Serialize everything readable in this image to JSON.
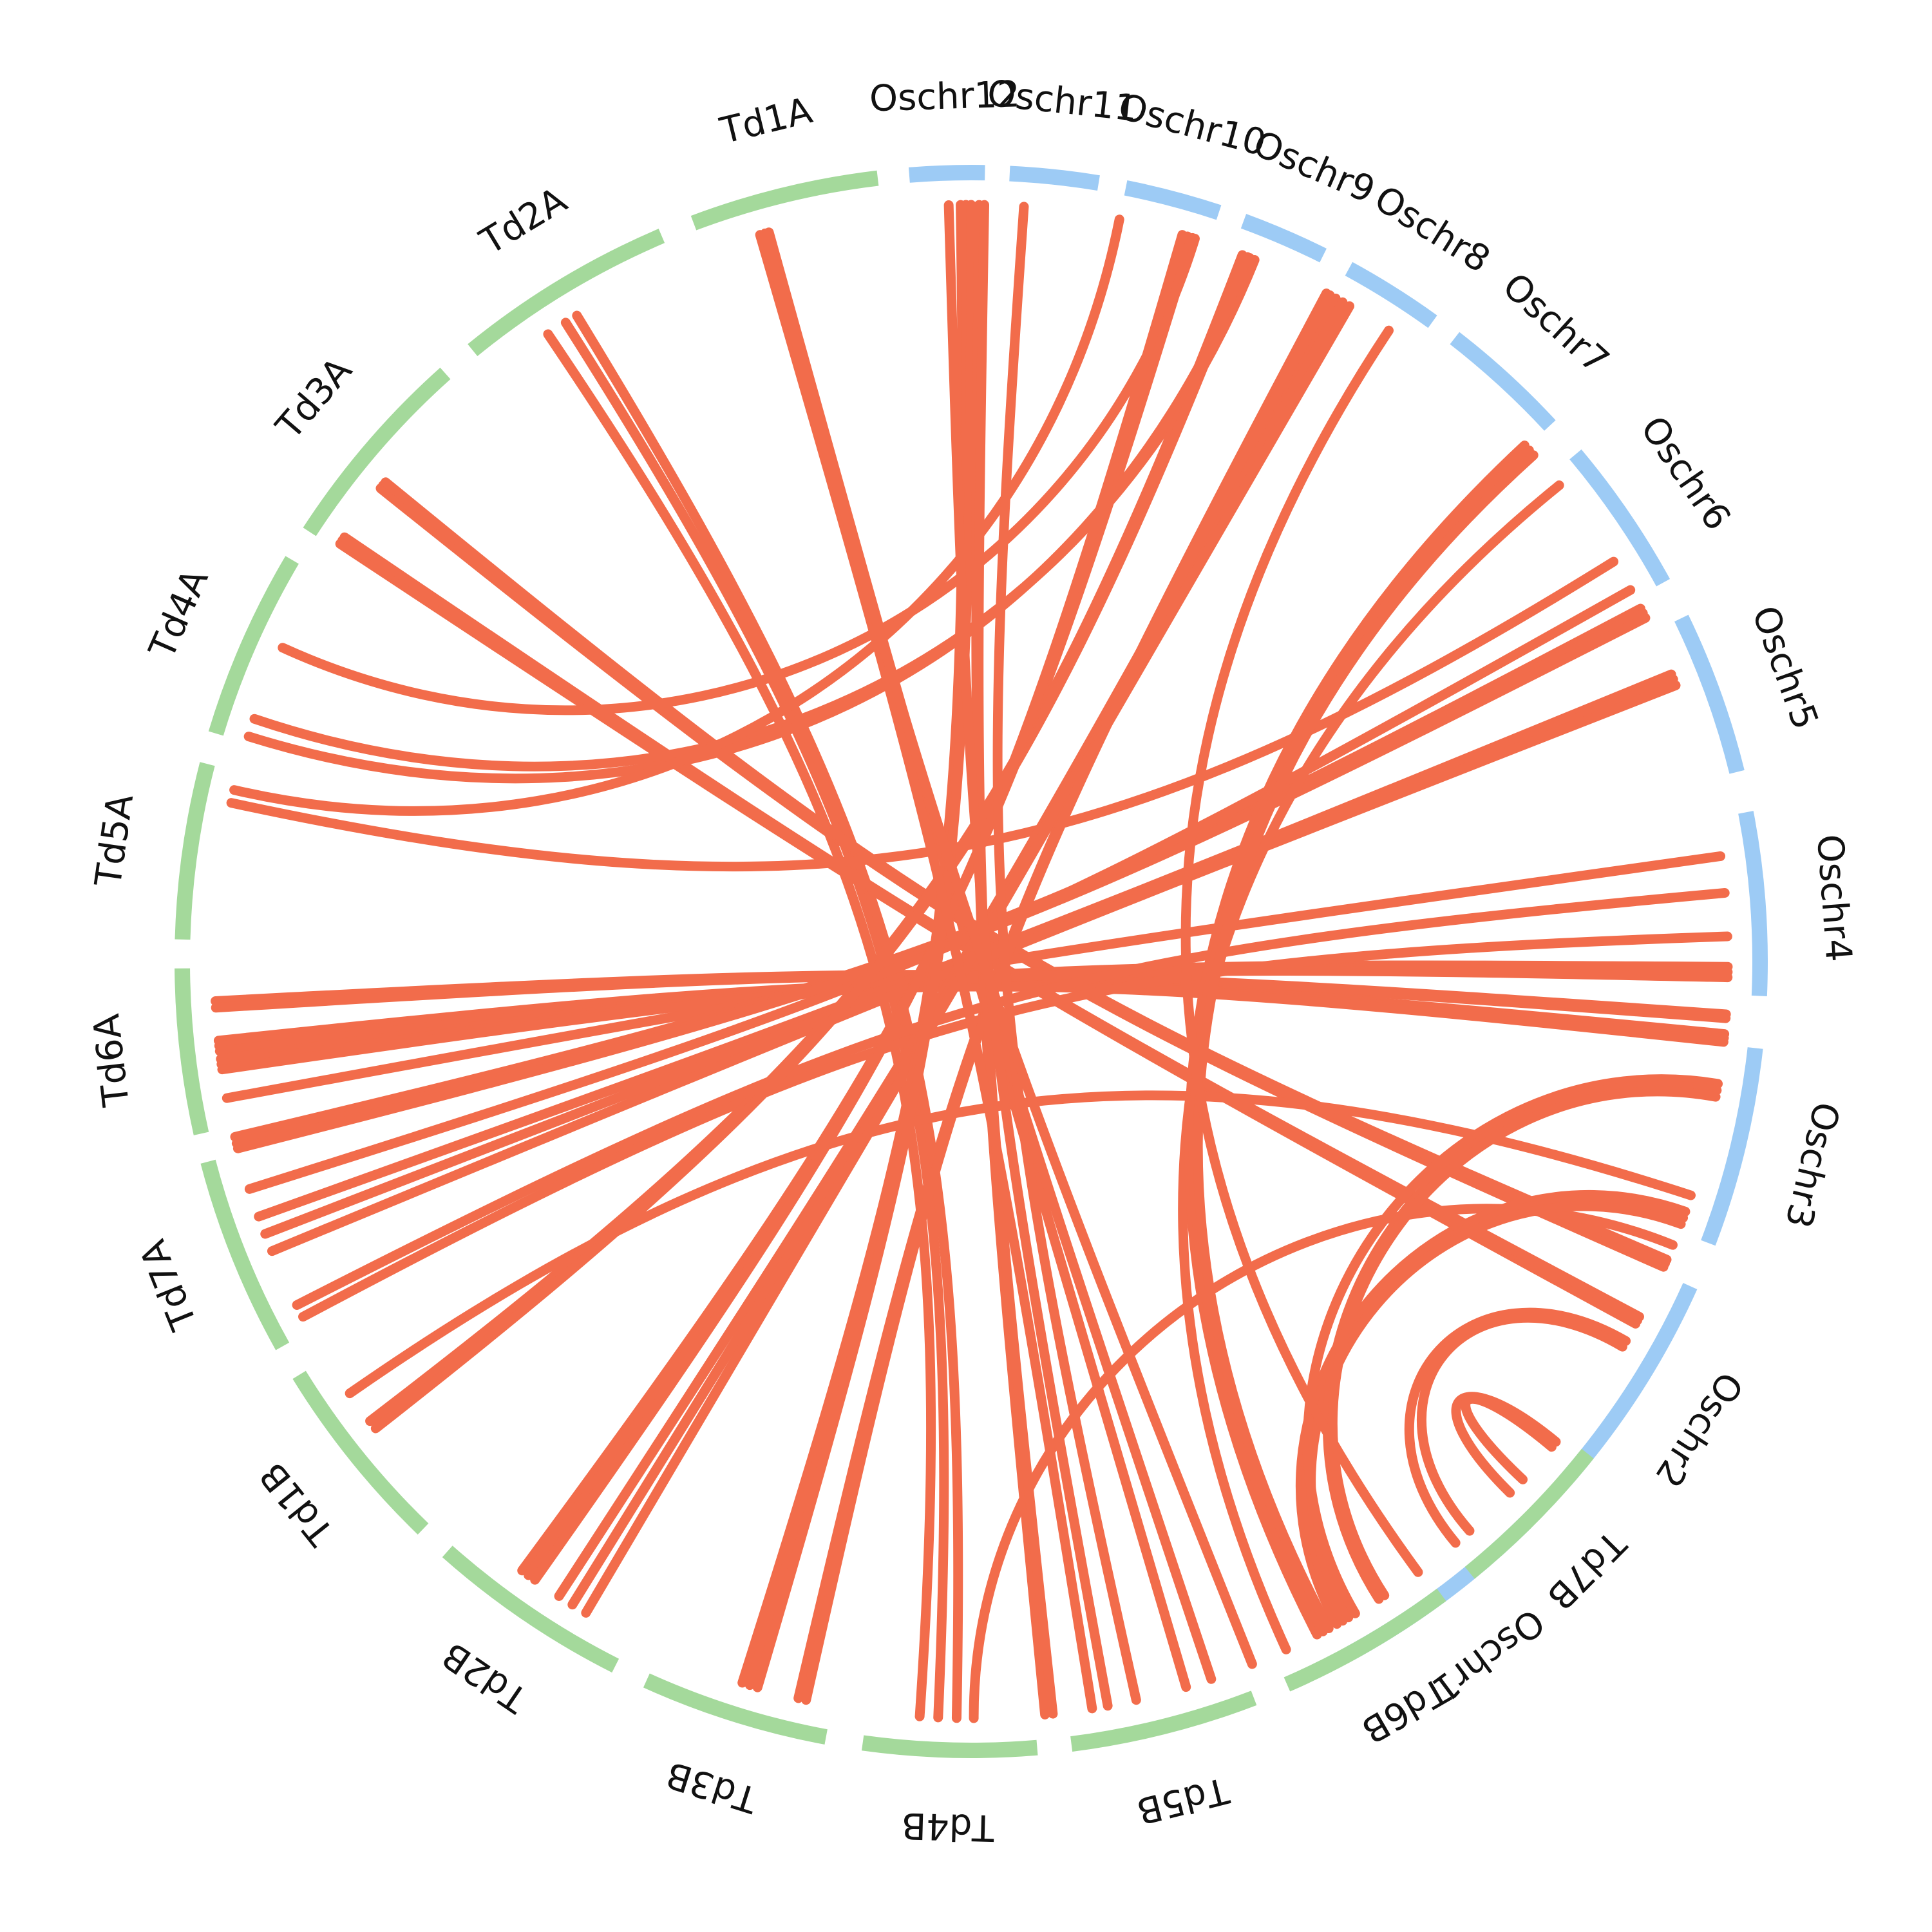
{
  "colors": {
    "rice": "#9dcbf5",
    "wheat": "#a4d99b",
    "link": "#f26c4b",
    "label": "#111111"
  },
  "segments": [
    {
      "name": "Oschr1",
      "group": "rice",
      "start": 315.3,
      "end": 331.3
    },
    {
      "name": "Oschr2",
      "group": "rice",
      "start": 294.3,
      "end": 311.2
    },
    {
      "name": "Oschr3",
      "group": "rice",
      "start": 276.3,
      "end": 290.9
    },
    {
      "name": "Oschr4",
      "group": "rice",
      "start": 259.1,
      "end": 272.5
    },
    {
      "name": "Oschr5",
      "group": "rice",
      "start": 244.2,
      "end": 256.1
    },
    {
      "name": "Oschr6",
      "group": "rice",
      "start": 230.0,
      "end": 241.3
    },
    {
      "name": "Oschr7",
      "group": "rice",
      "start": 217.8,
      "end": 227.2
    },
    {
      "name": "Oschr8",
      "group": "rice",
      "start": 208.6,
      "end": 215.8
    },
    {
      "name": "Oschr9",
      "group": "rice",
      "start": 200.2,
      "end": 206.5
    },
    {
      "name": "Oschr10",
      "group": "rice",
      "start": 191.3,
      "end": 198.3
    },
    {
      "name": "Oschr11",
      "group": "rice",
      "start": 182.8,
      "end": 189.3
    },
    {
      "name": "Oschr12",
      "group": "rice",
      "start": 175.5,
      "end": 181.0
    },
    {
      "name": "Td1A",
      "group": "wheat",
      "start": 159.4,
      "end": 173.2
    },
    {
      "name": "Td2A",
      "group": "wheat",
      "start": 140.8,
      "end": 156.9
    },
    {
      "name": "Td3A",
      "group": "wheat",
      "start": 123.0,
      "end": 138.2
    },
    {
      "name": "Td4A",
      "group": "wheat",
      "start": 106.8,
      "end": 120.6
    },
    {
      "name": "Td5A",
      "group": "wheat",
      "start": 91.6,
      "end": 104.5
    },
    {
      "name": "Td6A",
      "group": "wheat",
      "start": 77.4,
      "end": 89.5
    },
    {
      "name": "Td7A",
      "group": "wheat",
      "start": 60.8,
      "end": 75.3
    },
    {
      "name": "Td1B",
      "group": "wheat",
      "start": 44.0,
      "end": 58.4
    },
    {
      "name": "Td2B",
      "group": "wheat",
      "start": 26.8,
      "end": 41.6
    },
    {
      "name": "Td3B",
      "group": "wheat",
      "start": 10.6,
      "end": 24.3
    },
    {
      "name": "Td4B",
      "group": "wheat",
      "start": -4.8,
      "end": 7.9
    },
    {
      "name": "Td5B",
      "group": "wheat",
      "start": -21.0,
      "end": -7.3
    },
    {
      "name": "Td6B",
      "group": "wheat",
      "start": -36.6,
      "end": -23.6
    },
    {
      "name": "Td7B",
      "group": "wheat",
      "start": -51.4,
      "end": -39.2
    }
  ],
  "links": [
    [
      164.2,
      343.5
    ],
    [
      164.5,
      341.5
    ],
    [
      146.0,
      3.9
    ],
    [
      147.6,
      2.5
    ],
    [
      148.6,
      1.1
    ],
    [
      128.7,
      293.8
    ],
    [
      129.0,
      293.5
    ],
    [
      129.3,
      293.2
    ],
    [
      123.5,
      298.6
    ],
    [
      123.8,
      298.3
    ],
    [
      124.1,
      298.0
    ],
    [
      114.5,
      197.2
    ],
    [
      108.7,
      202.0
    ],
    [
      107.3,
      201.6
    ],
    [
      103.1,
      191.3
    ],
    [
      102.1,
      238.1
    ],
    [
      87.0,
      274.3
    ],
    [
      86.5,
      274.0
    ],
    [
      84.0,
      275.5
    ],
    [
      83.6,
      275.8
    ],
    [
      83.2,
      276.1
    ],
    [
      82.6,
      270.4
    ],
    [
      82.2,
      270.8
    ],
    [
      81.8,
      271.2
    ],
    [
      79.6,
      262.0
    ],
    [
      76.6,
      242.2
    ],
    [
      76.1,
      242.6
    ],
    [
      75.7,
      243.0
    ],
    [
      72.5,
      240.6
    ],
    [
      70.3,
      247.7
    ],
    [
      68.9,
      248.1
    ],
    [
      67.5,
      248.6
    ],
    [
      63.0,
      264.8
    ],
    [
      62.0,
      268.1
    ],
    [
      55.2,
      288.0
    ],
    [
      52.6,
      201.0
    ],
    [
      51.9,
      201.4
    ],
    [
      36.4,
      197.0
    ],
    [
      35.8,
      196.6
    ],
    [
      35.2,
      196.2
    ],
    [
      33.0,
      208.8
    ],
    [
      31.8,
      209.4
    ],
    [
      30.6,
      210.0
    ],
    [
      17.6,
      179.2
    ],
    [
      17.0,
      179.6
    ],
    [
      16.4,
      180.0
    ],
    [
      13.2,
      208.0
    ],
    [
      12.6,
      208.3
    ],
    [
      -0.2,
      292.0
    ],
    [
      -5.6,
      180.6
    ],
    [
      -6.2,
      181.0
    ],
    [
      -9.2,
      163.8
    ],
    [
      -10.4,
      178.3
    ],
    [
      -12.6,
      184.0
    ],
    [
      -21.8,
      164.2
    ],
    [
      -24.6,
      231.0
    ],
    [
      -27.2,
      227.0
    ],
    [
      -27.7,
      227.5
    ],
    [
      -28.2,
      228.0
    ],
    [
      -28.9,
      289.3
    ],
    [
      -29.4,
      289.8
    ],
    [
      -29.9,
      290.3
    ],
    [
      -30.5,
      279.3
    ],
    [
      -32.6,
      279.8
    ],
    [
      -33.1,
      280.3
    ],
    [
      -36.2,
      213.5
    ],
    [
      -39.8,
      300.1
    ],
    [
      -41.2,
      300.6
    ],
    [
      -45.4,
      309.4
    ],
    [
      -46.8,
      309.9
    ]
  ]
}
